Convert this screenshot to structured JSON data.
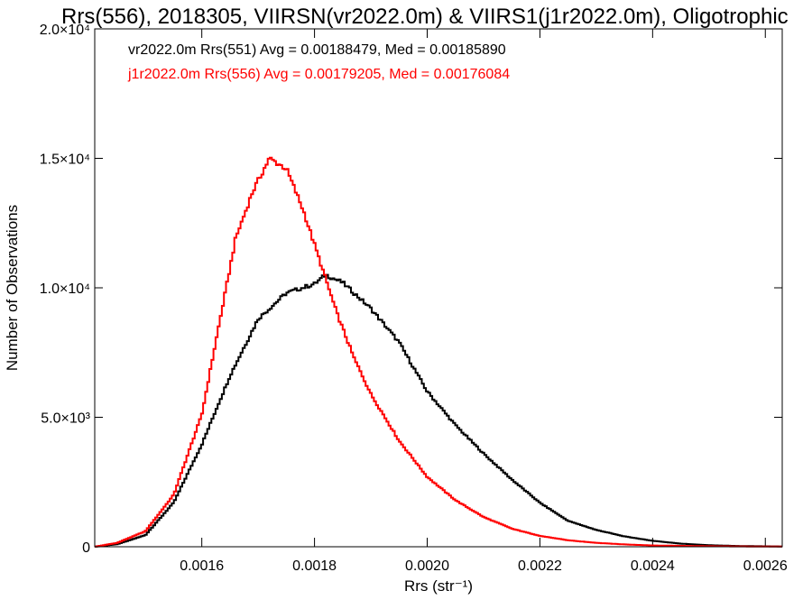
{
  "chart_data": {
    "type": "line",
    "title": "Rrs(556), 2018305, VIIRSN(vr2022.0m) & VIIRS1(j1r2022.0m), Oligotrophic",
    "xlabel": "Rrs (str⁻¹)",
    "ylabel": "Number of Observations",
    "xlim": [
      0.00141,
      0.00263
    ],
    "ylim": [
      0,
      20000
    ],
    "xticks": [
      {
        "value": 0.0016,
        "label": "0.0016"
      },
      {
        "value": 0.0018,
        "label": "0.0018"
      },
      {
        "value": 0.002,
        "label": "0.0020"
      },
      {
        "value": 0.0022,
        "label": "0.0022"
      },
      {
        "value": 0.0024,
        "label": "0.0024"
      },
      {
        "value": 0.0026,
        "label": "0.0026"
      }
    ],
    "yticks": [
      {
        "value": 0,
        "label": "0"
      },
      {
        "value": 5000,
        "label": "5.0×10³"
      },
      {
        "value": 10000,
        "label": "1.0×10⁴"
      },
      {
        "value": 15000,
        "label": "1.5×10⁴"
      },
      {
        "value": 20000,
        "label": "2.0×10⁴"
      }
    ],
    "legend_position": "top-left",
    "series": [
      {
        "name": "vr2022.0m Rrs(551) Avg = 0.00188479, Med = 0.00185890",
        "color": "#000000",
        "points": [
          [
            0.00141,
            0
          ],
          [
            0.00145,
            100
          ],
          [
            0.0015,
            450
          ],
          [
            0.00155,
            1700
          ],
          [
            0.0016,
            3950
          ],
          [
            0.00165,
            6600
          ],
          [
            0.0017,
            8800
          ],
          [
            0.00175,
            9800
          ],
          [
            0.0018,
            10150
          ],
          [
            0.00182,
            10500
          ],
          [
            0.00185,
            10200
          ],
          [
            0.0019,
            9200
          ],
          [
            0.00195,
            7900
          ],
          [
            0.002,
            6000
          ],
          [
            0.00205,
            4700
          ],
          [
            0.0021,
            3600
          ],
          [
            0.00215,
            2600
          ],
          [
            0.0022,
            1700
          ],
          [
            0.00225,
            1000
          ],
          [
            0.0023,
            650
          ],
          [
            0.00235,
            400
          ],
          [
            0.0024,
            230
          ],
          [
            0.00245,
            120
          ],
          [
            0.0025,
            60
          ],
          [
            0.00255,
            30
          ],
          [
            0.00263,
            10
          ]
        ]
      },
      {
        "name": "j1r2022.0m Rrs(556) Avg = 0.00179205, Med = 0.00176084",
        "color": "#ff0000",
        "points": [
          [
            0.00141,
            0
          ],
          [
            0.00145,
            150
          ],
          [
            0.0015,
            600
          ],
          [
            0.00155,
            2000
          ],
          [
            0.0016,
            5100
          ],
          [
            0.00163,
            8500
          ],
          [
            0.00166,
            11900
          ],
          [
            0.00169,
            13700
          ],
          [
            0.00172,
            15000
          ],
          [
            0.00175,
            14600
          ],
          [
            0.00178,
            13000
          ],
          [
            0.00181,
            11000
          ],
          [
            0.00184,
            9000
          ],
          [
            0.00187,
            7300
          ],
          [
            0.0019,
            5900
          ],
          [
            0.00195,
            4100
          ],
          [
            0.002,
            2700
          ],
          [
            0.00205,
            1800
          ],
          [
            0.0021,
            1150
          ],
          [
            0.00215,
            700
          ],
          [
            0.0022,
            420
          ],
          [
            0.00225,
            250
          ],
          [
            0.0023,
            150
          ],
          [
            0.00235,
            90
          ],
          [
            0.0024,
            50
          ],
          [
            0.0025,
            20
          ],
          [
            0.00263,
            5
          ]
        ]
      }
    ]
  }
}
